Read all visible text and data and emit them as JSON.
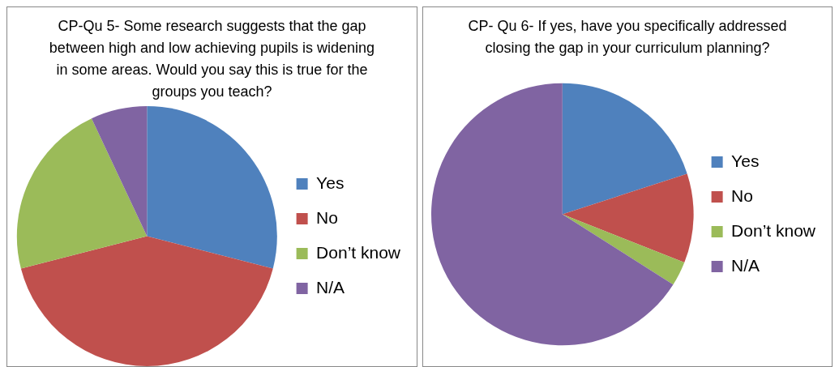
{
  "chart_data": [
    {
      "type": "pie",
      "title": "CP-Qu 5- Some research suggests that the gap between high and low achieving pupils is widening in some areas. Would you say this is true for the groups you teach?",
      "categories": [
        "Yes",
        "No",
        "Don’t know",
        "N/A"
      ],
      "values": [
        29,
        42,
        22,
        7
      ],
      "colors": [
        "#4f81bd",
        "#c0504d",
        "#9bbb59",
        "#8064a2"
      ],
      "legend": "right"
    },
    {
      "type": "pie",
      "title": "CP- Qu 6- If yes, have you specifically addressed closing the gap in your curriculum planning?",
      "categories": [
        "Yes",
        "No",
        "Don’t know",
        "N/A"
      ],
      "values": [
        20,
        11,
        3,
        66
      ],
      "colors": [
        "#4f81bd",
        "#c0504d",
        "#9bbb59",
        "#8064a2"
      ],
      "legend": "right"
    }
  ]
}
